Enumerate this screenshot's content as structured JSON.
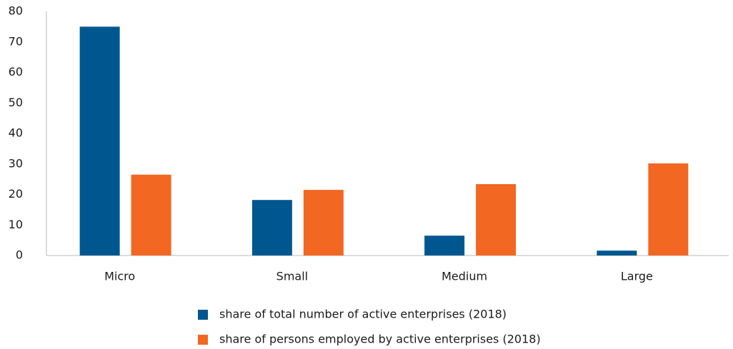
{
  "chart_data": {
    "type": "bar",
    "categories": [
      "Micro",
      "Small",
      "Medium",
      "Large"
    ],
    "series": [
      {
        "name": "share of total number of active enterprises (2018)",
        "color": "#00578f",
        "values": [
          75,
          18.2,
          6.5,
          1.6
        ]
      },
      {
        "name": "share of persons employed by active enterprises (2018)",
        "color": "#f26722",
        "values": [
          26.5,
          21.5,
          23.4,
          30.2
        ]
      }
    ],
    "ylim": [
      0,
      80
    ],
    "yticks": [
      0,
      10,
      20,
      30,
      40,
      50,
      60,
      70,
      80
    ],
    "grid": false,
    "legend": "bottom"
  }
}
